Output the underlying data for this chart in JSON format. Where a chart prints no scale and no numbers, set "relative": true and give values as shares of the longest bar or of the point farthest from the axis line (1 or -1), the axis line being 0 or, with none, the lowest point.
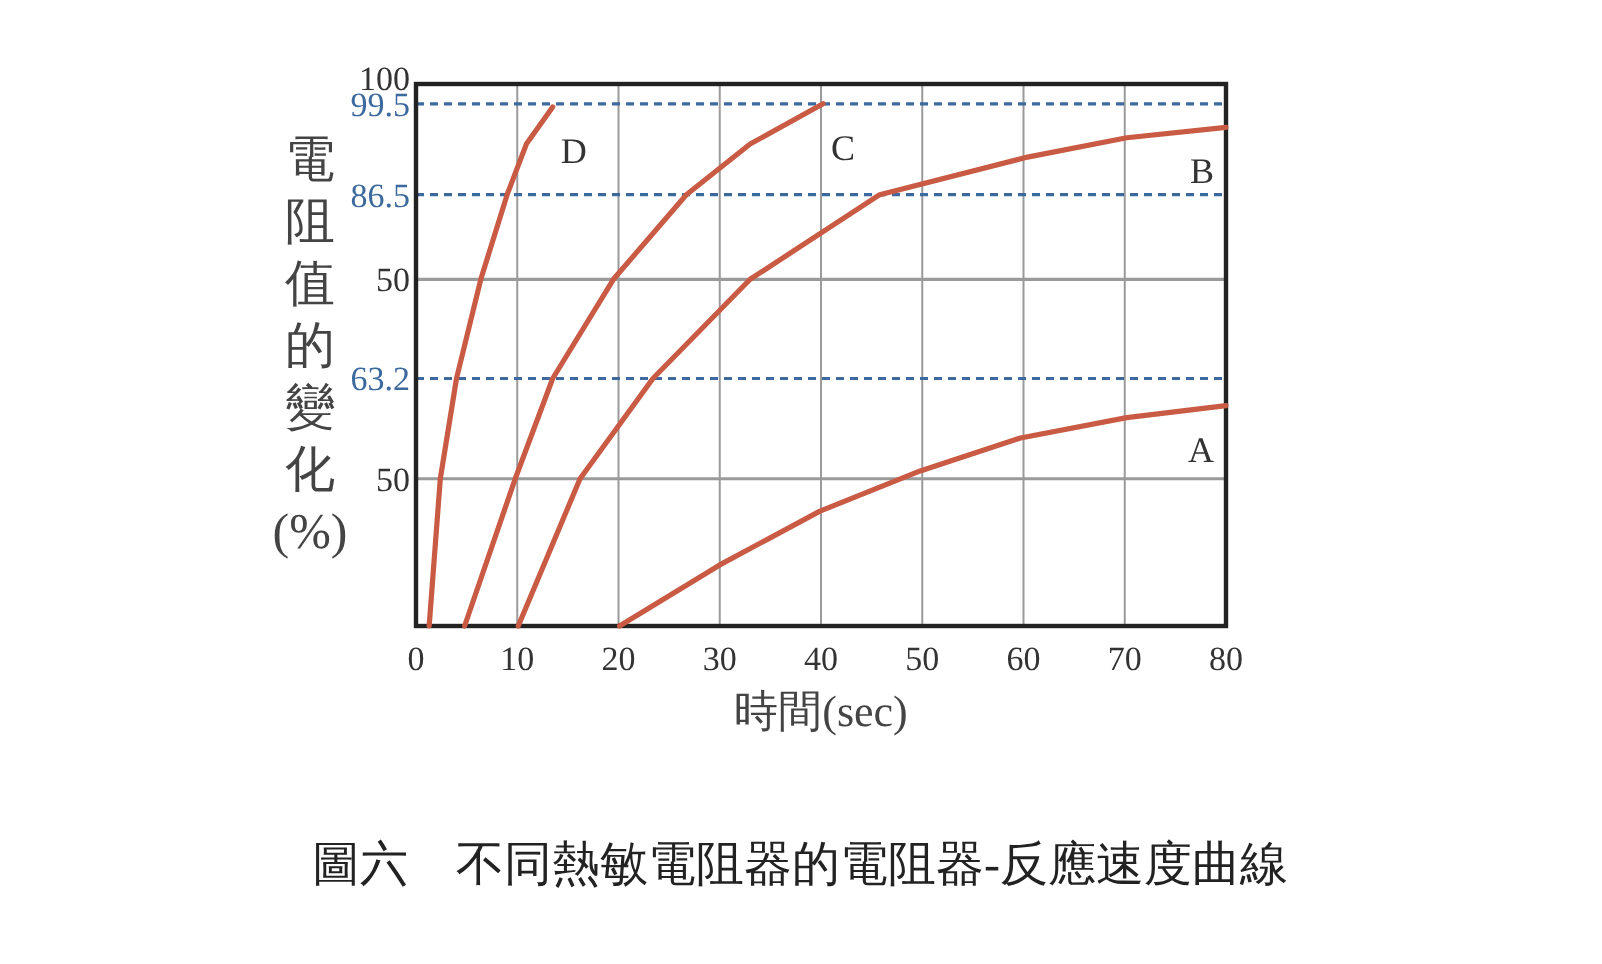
{
  "chart_data": {
    "type": "line",
    "title": "圖六　不同熱敏電阻器的電阻器-反應速度曲線",
    "xlabel": "時間(sec)",
    "ylabel": "電阻值的變化(%)",
    "relative": true,
    "xlim": [
      0,
      80
    ],
    "xticks": [
      0,
      10,
      20,
      30,
      40,
      50,
      60,
      70,
      80
    ],
    "grid": "x",
    "line_style": "solid",
    "annotations": [
      "100",
      "99.5",
      "86.5",
      "50",
      "63.2",
      "50"
    ],
    "ref_lines": [
      {
        "axis": "y",
        "value": 1,
        "color": "#3d6a9e",
        "line_style": "dashed"
      },
      {
        "axis": "y",
        "value": 0.826,
        "color": "#3d6a9e",
        "line_style": "dashed"
      },
      {
        "axis": "y",
        "value": 0.664,
        "color": "#9a9a9a",
        "line_style": "solid"
      },
      {
        "axis": "y",
        "value": 0.474,
        "color": "#3d6a9e",
        "line_style": "dashed"
      },
      {
        "axis": "y",
        "value": 0.282,
        "color": "#9a9a9a",
        "line_style": "solid"
      }
    ],
    "series": [
      {
        "name": "D",
        "color": "#c95a44",
        "x": [
          1.3,
          2.4,
          4.0,
          6.4,
          9.0,
          10.9,
          13.5
        ],
        "values": [
          0,
          0.282,
          0.474,
          0.664,
          0.826,
          0.923,
          0.994
        ]
      },
      {
        "name": "C",
        "color": "#c95a44",
        "x": [
          4.8,
          9.8,
          13.5,
          19.5,
          26.7,
          33,
          40.2
        ],
        "values": [
          0,
          0.282,
          0.474,
          0.664,
          0.826,
          0.923,
          1
        ]
      },
      {
        "name": "B",
        "color": "#c95a44",
        "x": [
          10.1,
          16.2,
          23.4,
          33,
          45.8,
          60.4,
          70.2,
          80
        ],
        "values": [
          0,
          0.282,
          0.474,
          0.664,
          0.826,
          0.898,
          0.935,
          0.955
        ]
      },
      {
        "name": "A",
        "color": "#c95a44",
        "x": [
          20.1,
          30,
          39.9,
          49.8,
          59.7,
          70.2,
          80
        ],
        "values": [
          0,
          0.117,
          0.22,
          0.297,
          0.36,
          0.399,
          0.422
        ]
      }
    ]
  }
}
